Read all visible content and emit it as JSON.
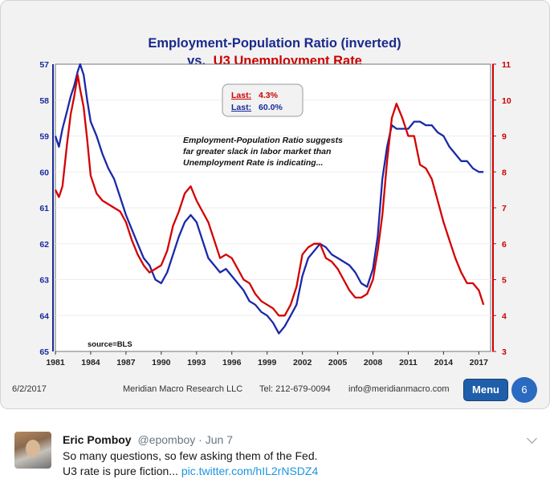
{
  "chart_data": {
    "type": "line",
    "title_line1": "Employment-Population Ratio (inverted)",
    "title_line2_prefix": "vs.",
    "title_line2_series": "U3 Unemployment Rate",
    "last_box": {
      "l1_label": "Last:",
      "l1_value": "4.3%",
      "l2_label": "Last:",
      "l2_value": "60.0%"
    },
    "annotation": [
      "Employment-Population Ratio suggests",
      "far greater slack in labor market than",
      "Unemployment Rate is indicating..."
    ],
    "source": "source=BLS",
    "x_ticks": [
      "1981",
      "1984",
      "1987",
      "1990",
      "1993",
      "1996",
      "1999",
      "2002",
      "2005",
      "2008",
      "2011",
      "2014",
      "2017"
    ],
    "xlim": [
      1981,
      2018
    ],
    "left_axis": {
      "ticks": [
        "57",
        "58",
        "59",
        "60",
        "61",
        "62",
        "63",
        "64",
        "65"
      ],
      "lim": [
        57,
        65
      ],
      "inverted": true,
      "color": "#1a2a9c"
    },
    "right_axis": {
      "ticks": [
        "11",
        "10",
        "9",
        "8",
        "7",
        "6",
        "5",
        "4",
        "3"
      ],
      "lim": [
        3,
        11
      ],
      "color": "#cc0000"
    },
    "series": [
      {
        "axis": "left",
        "color": "#1a29a8",
        "x": [
          1981.0,
          1981.3,
          1981.6,
          1982.0,
          1982.3,
          1982.6,
          1982.9,
          1983.1,
          1983.4,
          1983.7,
          1984.0,
          1984.5,
          1985.0,
          1985.5,
          1986.0,
          1986.5,
          1987.0,
          1987.5,
          1988.0,
          1988.5,
          1989.0,
          1989.5,
          1990.0,
          1990.5,
          1991.0,
          1991.5,
          1992.0,
          1992.5,
          1993.0,
          1993.5,
          1994.0,
          1994.5,
          1995.0,
          1995.5,
          1996.0,
          1996.5,
          1997.0,
          1997.5,
          1998.0,
          1998.5,
          1999.0,
          1999.5,
          2000.0,
          2000.5,
          2001.0,
          2001.5,
          2002.0,
          2002.5,
          2003.0,
          2003.5,
          2004.0,
          2004.5,
          2005.0,
          2005.5,
          2006.0,
          2006.5,
          2007.0,
          2007.5,
          2008.0,
          2008.4,
          2008.8,
          2009.2,
          2009.6,
          2010.0,
          2010.5,
          2011.0,
          2011.5,
          2012.0,
          2012.5,
          2013.0,
          2013.5,
          2014.0,
          2014.5,
          2015.0,
          2015.5,
          2016.0,
          2016.5,
          2017.0,
          2017.4
        ],
        "values": [
          59.0,
          59.3,
          58.8,
          58.3,
          57.9,
          57.6,
          57.2,
          57.0,
          57.3,
          58.0,
          58.6,
          59.0,
          59.5,
          59.9,
          60.2,
          60.7,
          61.2,
          61.6,
          62.0,
          62.4,
          62.6,
          63.0,
          63.1,
          62.8,
          62.3,
          61.8,
          61.4,
          61.2,
          61.4,
          61.9,
          62.4,
          62.6,
          62.8,
          62.7,
          62.9,
          63.1,
          63.3,
          63.6,
          63.7,
          63.9,
          64.0,
          64.2,
          64.5,
          64.3,
          64.0,
          63.7,
          62.9,
          62.4,
          62.2,
          62.0,
          62.1,
          62.3,
          62.4,
          62.5,
          62.6,
          62.8,
          63.1,
          63.2,
          62.7,
          61.8,
          60.2,
          59.3,
          58.7,
          58.8,
          58.8,
          58.8,
          58.6,
          58.6,
          58.7,
          58.7,
          58.9,
          59.0,
          59.3,
          59.5,
          59.7,
          59.7,
          59.9,
          60.0,
          60.0
        ]
      },
      {
        "axis": "right",
        "color": "#d40000",
        "x": [
          1981.0,
          1981.3,
          1981.6,
          1982.0,
          1982.3,
          1982.6,
          1982.9,
          1983.1,
          1983.4,
          1983.7,
          1984.0,
          1984.5,
          1985.0,
          1985.5,
          1986.0,
          1986.5,
          1987.0,
          1987.5,
          1988.0,
          1988.5,
          1989.0,
          1989.5,
          1990.0,
          1990.5,
          1991.0,
          1991.5,
          1992.0,
          1992.5,
          1993.0,
          1993.5,
          1994.0,
          1994.5,
          1995.0,
          1995.5,
          1996.0,
          1996.5,
          1997.0,
          1997.5,
          1998.0,
          1998.5,
          1999.0,
          1999.5,
          2000.0,
          2000.5,
          2001.0,
          2001.5,
          2002.0,
          2002.5,
          2003.0,
          2003.5,
          2004.0,
          2004.5,
          2005.0,
          2005.5,
          2006.0,
          2006.5,
          2007.0,
          2007.5,
          2008.0,
          2008.4,
          2008.8,
          2009.2,
          2009.6,
          2010.0,
          2010.5,
          2011.0,
          2011.5,
          2012.0,
          2012.5,
          2013.0,
          2013.5,
          2014.0,
          2014.5,
          2015.0,
          2015.5,
          2016.0,
          2016.5,
          2017.0,
          2017.4
        ],
        "values": [
          7.5,
          7.3,
          7.6,
          8.8,
          9.6,
          10.1,
          10.7,
          10.3,
          9.8,
          8.9,
          7.9,
          7.4,
          7.2,
          7.1,
          7.0,
          6.9,
          6.6,
          6.1,
          5.7,
          5.4,
          5.2,
          5.3,
          5.4,
          5.8,
          6.5,
          6.9,
          7.4,
          7.6,
          7.2,
          6.9,
          6.6,
          6.1,
          5.6,
          5.7,
          5.6,
          5.3,
          5.0,
          4.9,
          4.6,
          4.4,
          4.3,
          4.2,
          4.0,
          4.0,
          4.3,
          4.8,
          5.7,
          5.9,
          6.0,
          6.0,
          5.6,
          5.5,
          5.3,
          5.0,
          4.7,
          4.5,
          4.5,
          4.6,
          5.0,
          5.8,
          6.8,
          8.3,
          9.5,
          9.9,
          9.5,
          9.0,
          9.0,
          8.2,
          8.1,
          7.8,
          7.2,
          6.6,
          6.1,
          5.6,
          5.2,
          4.9,
          4.9,
          4.7,
          4.3
        ]
      }
    ]
  },
  "footer": {
    "date": "6/2/2017",
    "company": "Meridian Macro Research LLC",
    "tel": "Tel: 212-679-0094",
    "email": "info@meridianmacro.com",
    "menu_label": "Menu",
    "page_number": "6"
  },
  "tweet": {
    "name": "Eric Pomboy",
    "handle": "@epomboy · Jun 7",
    "line1": "So many questions, so few asking them of the Fed.",
    "line2_text": "U3 rate is pure fiction...",
    "line2_link": "pic.twitter.com/hIL2rNSDZ4"
  }
}
